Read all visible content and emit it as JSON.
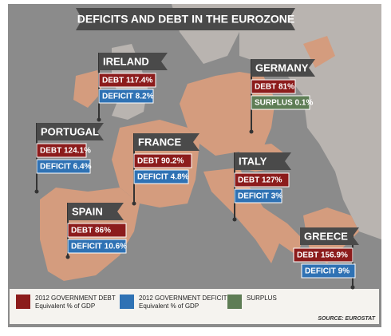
{
  "title": "DEFICITS AND DEBT IN THE EUROZONE",
  "countries": [
    {
      "name": "IRELAND",
      "debt": "DEBT 117.4%",
      "debt_color": "#8c1c1c",
      "balance": "DEFICIT 8.2%",
      "balance_color": "#2f72b4"
    },
    {
      "name": "GERMANY",
      "debt": "DEBT 81%",
      "debt_color": "#8c1c1c",
      "balance": "SURPLUS 0.1%",
      "balance_color": "#5e7d55"
    },
    {
      "name": "PORTUGAL",
      "debt": "DEBT 124.1%",
      "debt_color": "#8c1c1c",
      "balance": "DEFICIT 6.4%",
      "balance_color": "#2f72b4"
    },
    {
      "name": "FRANCE",
      "debt": "DEBT 90.2%",
      "debt_color": "#8c1c1c",
      "balance": "DEFICIT 4.8%",
      "balance_color": "#2f72b4"
    },
    {
      "name": "ITALY",
      "debt": "DEBT 127%",
      "debt_color": "#8c1c1c",
      "balance": "DEFICIT 3%",
      "balance_color": "#2f72b4"
    },
    {
      "name": "SPAIN",
      "debt": "DEBT 86%",
      "debt_color": "#8c1c1c",
      "balance": "DEFICIT 10.6%",
      "balance_color": "#2f72b4"
    },
    {
      "name": "GREECE",
      "debt": "DEBT 156.9%",
      "debt_color": "#8c1c1c",
      "balance": "DEFICIT 9%",
      "balance_color": "#2f72b4"
    }
  ],
  "legend": [
    {
      "lines": [
        "2012 GOVERNMENT DEBT",
        "Equivalent % of GDP"
      ],
      "color": "#8c1c1c"
    },
    {
      "lines": [
        "2012 GOVERNMENT DEFICIT",
        "Equivalent % of GDP"
      ],
      "color": "#2f72b4"
    },
    {
      "lines": [
        "SURPLUS"
      ],
      "color": "#5e7d55"
    }
  ],
  "source": "SOURCE: EUROSTAT"
}
